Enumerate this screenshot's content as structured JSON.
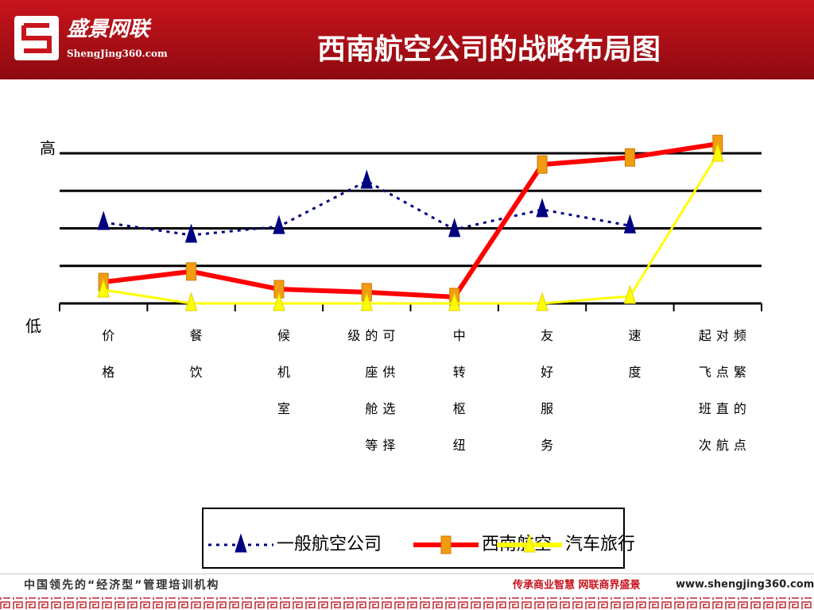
{
  "header": {
    "logo_name": "盛景网联",
    "logo_site": "ShengJing360.com",
    "title": "西南航空公司的战略布局图"
  },
  "chart_data": {
    "type": "line",
    "y_high_label": "高",
    "y_low_label": "低",
    "categories": [
      "价格",
      "餐饮",
      "候机室",
      "可供选择的座舱等级",
      "中转枢纽",
      "友好服务",
      "速度",
      "频繁的点对点直航起飞班次"
    ],
    "series": [
      {
        "name": "一般航空公司",
        "color": "#000080",
        "style": "dotted",
        "marker": "triangle",
        "values": [
          2.16,
          1.82,
          2.05,
          3.26,
          1.97,
          2.5,
          2.07,
          null
        ]
      },
      {
        "name": "西南航空",
        "color": "#ff0000",
        "style": "solid",
        "marker": "square",
        "marker_color": "#f39c12",
        "values": [
          0.57,
          0.85,
          0.38,
          0.3,
          0.17,
          3.7,
          3.89,
          4.25
        ]
      },
      {
        "name": "汽车旅行",
        "color": "#ffff00",
        "style": "solid",
        "marker": "triangle",
        "values": [
          0.36,
          0,
          0,
          0,
          0,
          0,
          0.19,
          3.98
        ]
      }
    ],
    "ylim": [
      0,
      4
    ],
    "yticks": [
      0,
      1,
      2,
      3,
      4
    ],
    "grid": true,
    "legend": "bottom"
  },
  "footer": {
    "left": "中国领先的“经济型”管理培训机构",
    "slogan": "传承商业智慧  网联商界盛景",
    "url": "www.shengjing360.com"
  }
}
